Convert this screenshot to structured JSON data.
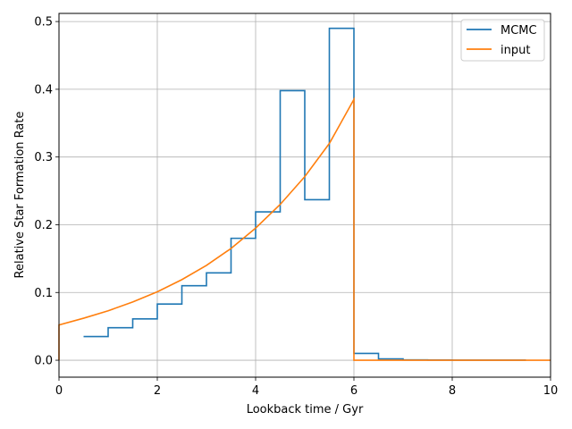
{
  "chart_data": {
    "type": "line",
    "xlabel": "Lookback time / Gyr",
    "ylabel": "Relative Star Formation Rate",
    "xlim": [
      0,
      10
    ],
    "ylim": [
      -0.025,
      0.512
    ],
    "xticks": [
      0,
      2,
      4,
      6,
      8,
      10
    ],
    "xtick_labels": [
      "0",
      "2",
      "4",
      "6",
      "8",
      "10"
    ],
    "yticks": [
      0.0,
      0.1,
      0.2,
      0.3,
      0.4,
      0.5
    ],
    "ytick_labels": [
      "0.0",
      "0.1",
      "0.2",
      "0.3",
      "0.4",
      "0.5"
    ],
    "grid": true,
    "legend_position": "top-right",
    "series": [
      {
        "name": "MCMC",
        "style": "step",
        "color": "#1f77b4",
        "bin_edges": [
          0.5,
          1.0,
          1.5,
          2.0,
          2.5,
          3.0,
          3.5,
          4.0,
          4.5,
          5.0,
          5.5,
          6.0,
          6.5,
          7.0,
          7.5,
          8.0,
          8.5,
          9.0,
          9.5
        ],
        "values": [
          0.035,
          0.048,
          0.061,
          0.083,
          0.11,
          0.129,
          0.18,
          0.219,
          0.398,
          0.237,
          0.49,
          0.01,
          0.002,
          0.0005,
          0.0003,
          0.0002,
          0.0001,
          0.0001
        ]
      },
      {
        "name": "input",
        "style": "line",
        "color": "#ff7f0e",
        "x": [
          0.0,
          0.0,
          0.5,
          1.0,
          1.5,
          2.0,
          2.5,
          3.0,
          3.5,
          4.0,
          4.5,
          5.0,
          5.5,
          6.0,
          6.0,
          10.0
        ],
        "y": [
          0.0,
          0.052,
          0.062,
          0.073,
          0.086,
          0.101,
          0.119,
          0.14,
          0.165,
          0.195,
          0.23,
          0.271,
          0.32,
          0.385,
          0.0,
          0.0
        ]
      }
    ]
  }
}
